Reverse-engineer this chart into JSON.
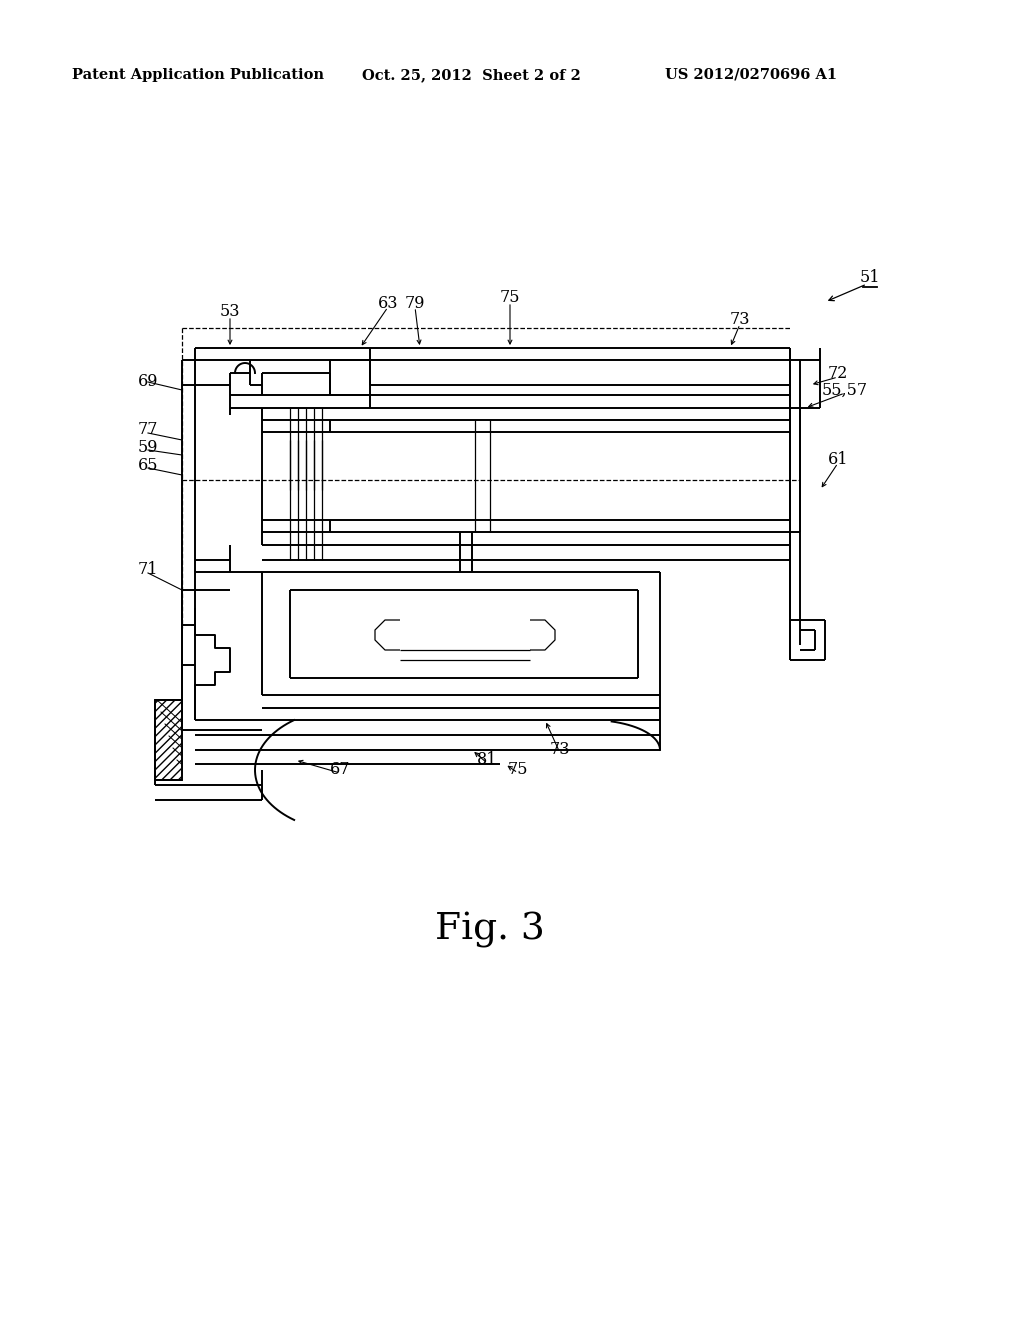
{
  "bg": "#ffffff",
  "header_left": "Patent Application Publication",
  "header_mid": "Oct. 25, 2012  Sheet 2 of 2",
  "header_right": "US 2012/0270696 A1",
  "fig_label": "Fig. 3",
  "lw": 1.4,
  "lt": 0.9,
  "lfs": 11.5
}
